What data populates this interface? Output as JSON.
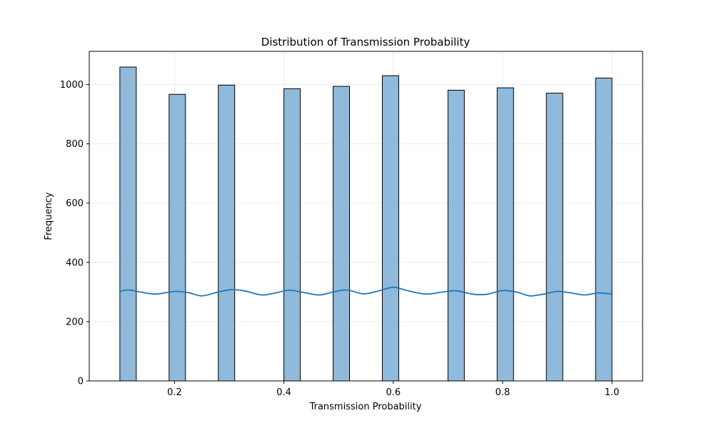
{
  "chart_data": {
    "type": "bar",
    "title": "Distribution of Transmission Probability",
    "xlabel": "Transmission Probability",
    "ylabel": "Frequency",
    "xlim": [
      0.044,
      1.056
    ],
    "ylim": [
      0,
      1112
    ],
    "xticks": [
      0.2,
      0.4,
      0.6,
      0.8,
      1.0
    ],
    "xtick_labels": [
      "0.2",
      "0.4",
      "0.6",
      "0.8",
      "1.0"
    ],
    "yticks": [
      0,
      200,
      400,
      600,
      800,
      1000
    ],
    "ytick_labels": [
      "0",
      "200",
      "400",
      "600",
      "800",
      "1000"
    ],
    "grid": true,
    "bar_color": "#8fbadb",
    "bar_edge_color": "#000000",
    "kde_color": "#1f77b4",
    "bins": [
      {
        "x0": 0.1,
        "x1": 0.13,
        "count": 1059
      },
      {
        "x0": 0.19,
        "x1": 0.22,
        "count": 967
      },
      {
        "x0": 0.28,
        "x1": 0.31,
        "count": 998
      },
      {
        "x0": 0.4,
        "x1": 0.43,
        "count": 986
      },
      {
        "x0": 0.49,
        "x1": 0.52,
        "count": 994
      },
      {
        "x0": 0.58,
        "x1": 0.61,
        "count": 1030
      },
      {
        "x0": 0.7,
        "x1": 0.73,
        "count": 981
      },
      {
        "x0": 0.79,
        "x1": 0.82,
        "count": 989
      },
      {
        "x0": 0.88,
        "x1": 0.91,
        "count": 971
      },
      {
        "x0": 0.97,
        "x1": 1.0,
        "count": 1022
      }
    ],
    "kde": {
      "x": [
        0.1,
        0.115,
        0.138,
        0.165,
        0.2,
        0.225,
        0.25,
        0.28,
        0.305,
        0.33,
        0.36,
        0.385,
        0.41,
        0.44,
        0.465,
        0.49,
        0.515,
        0.545,
        0.57,
        0.6,
        0.625,
        0.66,
        0.69,
        0.715,
        0.745,
        0.77,
        0.8,
        0.825,
        0.85,
        0.875,
        0.9,
        0.925,
        0.95,
        0.975,
        1.0
      ],
      "y": [
        301,
        307,
        300,
        293,
        302,
        298,
        287,
        300,
        308,
        303,
        290,
        297,
        306,
        297,
        290,
        300,
        307,
        294,
        302,
        316,
        305,
        293,
        300,
        304,
        293,
        292,
        305,
        300,
        287,
        293,
        302,
        297,
        290,
        297,
        293
      ]
    }
  }
}
